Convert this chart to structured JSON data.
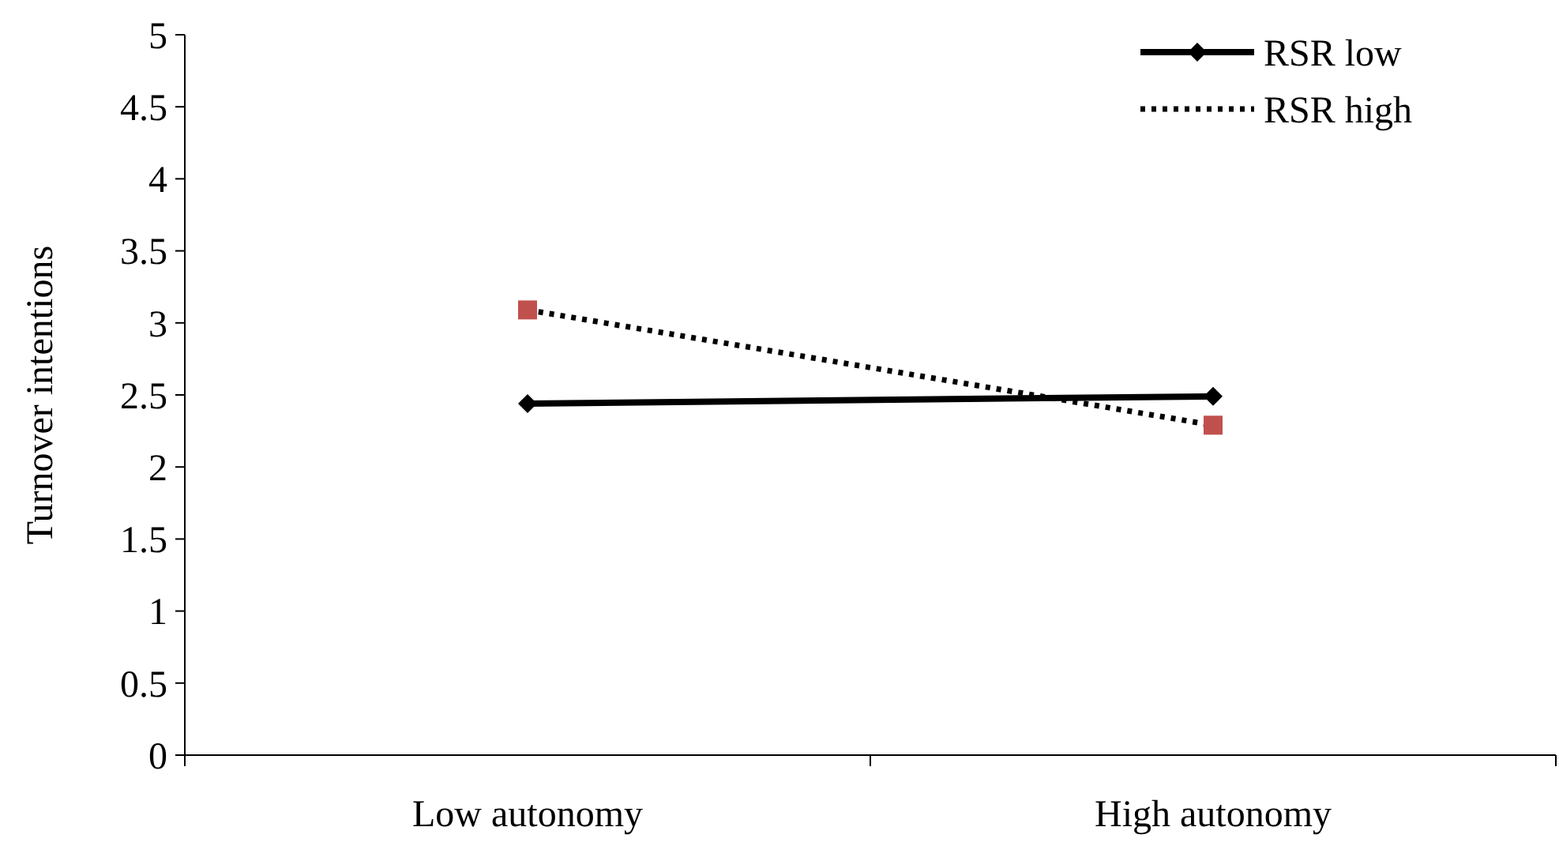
{
  "chart_data": {
    "type": "line",
    "ylabel": "Turnover intentions",
    "categories": [
      "Low autonomy",
      "High autonomy"
    ],
    "series": [
      {
        "name": "RSR low",
        "color": "#000000",
        "values": [
          2.44,
          2.49
        ],
        "marker": "diamond",
        "line_style": "solid"
      },
      {
        "name": "RSR high",
        "color": "#000000",
        "colors": [
          "#c0504d",
          "#c0504d"
        ],
        "values": [
          3.09,
          2.29
        ],
        "marker": "square",
        "line_style": "dotted"
      }
    ],
    "ylim": [
      0,
      5
    ],
    "yticks": [
      0,
      0.5,
      1,
      1.5,
      2,
      2.5,
      3,
      3.5,
      4,
      4.5,
      5
    ],
    "grid": false,
    "legend": "top right"
  }
}
